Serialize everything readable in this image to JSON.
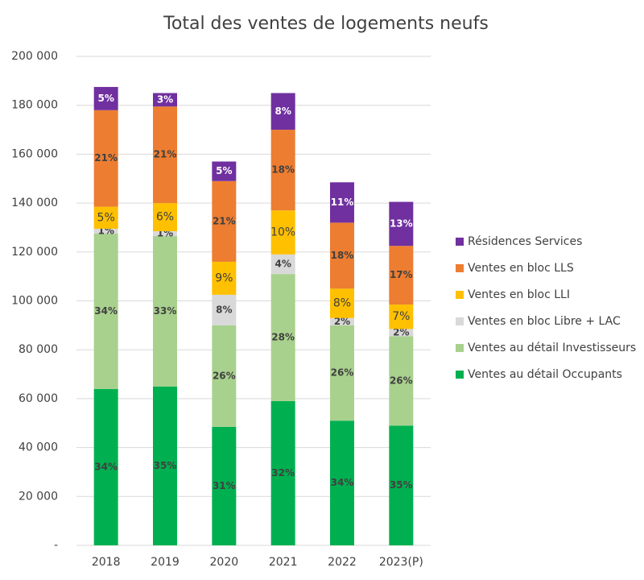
{
  "chart_data": {
    "type": "stacked_bar",
    "title": "Total des ventes de logements neufs",
    "categories": [
      "2018",
      "2019",
      "2020",
      "2021",
      "2022",
      "2023(P)"
    ],
    "series": [
      {
        "name": "Ventes au détail Occupants",
        "color": "#00b050",
        "values": [
          64000,
          65000,
          48500,
          59000,
          51000,
          49000
        ],
        "value_labels": [
          "34%",
          "35%",
          "31%",
          "32%",
          "34%",
          "35%"
        ]
      },
      {
        "name": "Ventes au détail Investisseurs",
        "color": "#a9d18e",
        "values": [
          63500,
          61500,
          41500,
          52000,
          39000,
          36500
        ],
        "value_labels": [
          "34%",
          "33%",
          "26%",
          "28%",
          "26%",
          "26%"
        ]
      },
      {
        "name": "Ventes en bloc Libre + LAC",
        "color": "#d9d9d9",
        "values": [
          2000,
          2000,
          12500,
          8000,
          3000,
          3000
        ],
        "value_labels": [
          "1%",
          "1%",
          "8%",
          "4%",
          "2%",
          "2%"
        ]
      },
      {
        "name": "Ventes en bloc LLI",
        "color": "#ffc000",
        "values": [
          9000,
          11500,
          13500,
          18000,
          12000,
          10000
        ],
        "value_labels": [
          "5%",
          "6%",
          "9%",
          "10%",
          "8%",
          "7%"
        ]
      },
      {
        "name": "Ventes en bloc LLS",
        "color": "#ed7d31",
        "values": [
          39500,
          39500,
          33000,
          33000,
          27000,
          24000
        ],
        "value_labels": [
          "21%",
          "21%",
          "21%",
          "18%",
          "18%",
          "17%"
        ]
      },
      {
        "name": "Résidences Services",
        "color": "#7030a0",
        "values": [
          9500,
          5500,
          8000,
          15000,
          16500,
          18000
        ],
        "value_labels": [
          "5%",
          "3%",
          "5%",
          "8%",
          "11%",
          "13%"
        ]
      }
    ],
    "ylim": [
      0,
      200000
    ],
    "yticks": [
      {
        "value": 0,
        "label": "-"
      },
      {
        "value": 20000,
        "label": "20 000"
      },
      {
        "value": 40000,
        "label": "40 000"
      },
      {
        "value": 60000,
        "label": "60 000"
      },
      {
        "value": 80000,
        "label": "80 000"
      },
      {
        "value": 100000,
        "label": "100 000"
      },
      {
        "value": 120000,
        "label": "120 000"
      },
      {
        "value": 140000,
        "label": "140 000"
      },
      {
        "value": 160000,
        "label": "160 000"
      },
      {
        "value": 180000,
        "label": "180 000"
      },
      {
        "value": 200000,
        "label": "200 000"
      }
    ],
    "grid": true,
    "legend": "right"
  }
}
